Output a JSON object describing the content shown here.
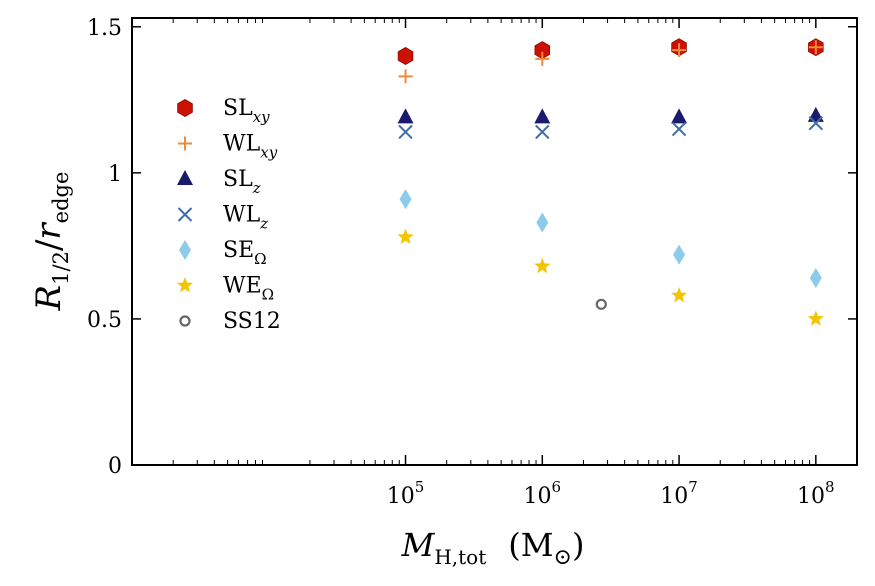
{
  "chart_data": {
    "type": "scatter",
    "title": "",
    "xlabel": {
      "main": "M",
      "sub": "H,tot",
      "unit": "(M",
      "unit_sub": "⊙",
      "unit_close": ")"
    },
    "ylabel": {
      "main": "R",
      "sub1": "1/2",
      "slash": "/",
      "main2": "r",
      "sub2": "edge"
    },
    "x_scale": "log",
    "xlim": [
      1000,
      200000000
    ],
    "ylim": [
      0,
      1.53
    ],
    "x_ticks": [
      {
        "value": 100000,
        "base": "10",
        "exp": "5"
      },
      {
        "value": 1000000,
        "base": "10",
        "exp": "6"
      },
      {
        "value": 10000000,
        "base": "10",
        "exp": "7"
      },
      {
        "value": 100000000,
        "base": "10",
        "exp": "8"
      }
    ],
    "y_ticks": [
      {
        "value": 0,
        "label": "0"
      },
      {
        "value": 0.5,
        "label": "0.5"
      },
      {
        "value": 1,
        "label": "1"
      },
      {
        "value": 1.5,
        "label": "1.5"
      }
    ],
    "legend_position": "left",
    "series": [
      {
        "name": "SL",
        "sub": "xy",
        "marker": "hexagon",
        "color": "#cc1100",
        "x": [
          100000,
          1000000,
          10000000,
          100000000
        ],
        "y": [
          1.4,
          1.42,
          1.43,
          1.43
        ]
      },
      {
        "name": "WL",
        "sub": "xy",
        "marker": "plus",
        "color": "#f08a3c",
        "x": [
          100000,
          1000000,
          10000000,
          100000000
        ],
        "y": [
          1.33,
          1.39,
          1.42,
          1.43
        ]
      },
      {
        "name": "SL",
        "sub": "z",
        "marker": "triangle",
        "color": "#1a1a6e",
        "x": [
          100000,
          1000000,
          10000000,
          100000000
        ],
        "y": [
          1.19,
          1.19,
          1.19,
          1.195
        ]
      },
      {
        "name": "WL",
        "sub": "z",
        "marker": "x",
        "color": "#3d6ea8",
        "x": [
          100000,
          1000000,
          10000000,
          100000000
        ],
        "y": [
          1.14,
          1.14,
          1.15,
          1.17
        ]
      },
      {
        "name": "SE",
        "sub": "Ω",
        "marker": "diamond",
        "color": "#8ccbea",
        "x": [
          100000,
          1000000,
          10000000,
          100000000
        ],
        "y": [
          0.91,
          0.83,
          0.72,
          0.64
        ]
      },
      {
        "name": "WE",
        "sub": "Ω",
        "marker": "star",
        "color": "#f2c500",
        "x": [
          100000,
          1000000,
          10000000,
          100000000
        ],
        "y": [
          0.78,
          0.68,
          0.58,
          0.5
        ]
      },
      {
        "name": "SS12",
        "sub": "",
        "marker": "circle",
        "color": "#666666",
        "x": [
          2700000
        ],
        "y": [
          0.55
        ]
      }
    ]
  }
}
